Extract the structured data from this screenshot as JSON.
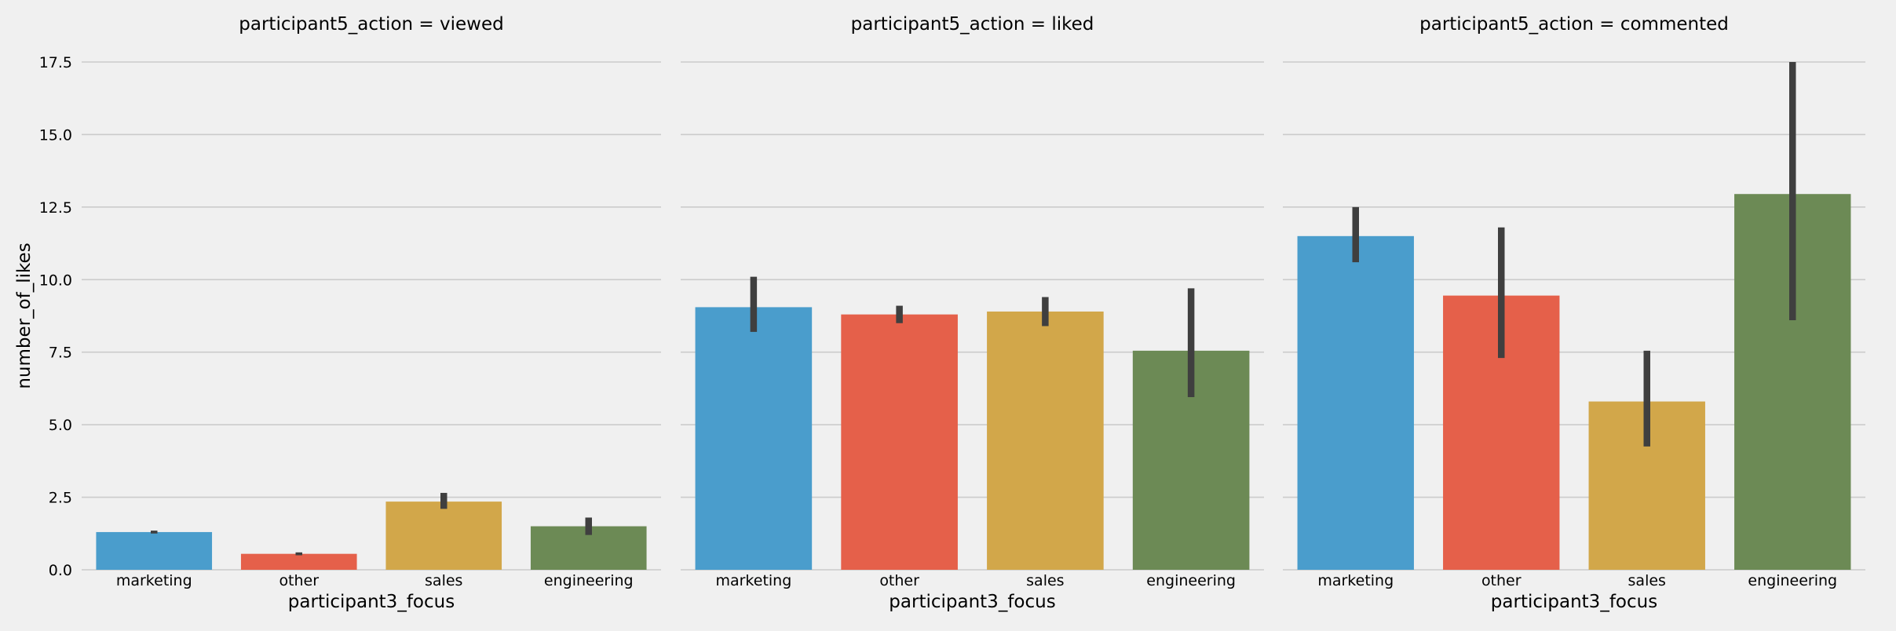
{
  "chart_data": {
    "type": "bar",
    "layout": "facet-grid-1x3",
    "shared_y_axis": true,
    "ylabel": "number_of_likes",
    "xlabel": "participant3_focus",
    "ylim": [
      0,
      17.5
    ],
    "yticks": [
      0.0,
      2.5,
      5.0,
      7.5,
      10.0,
      12.5,
      15.0,
      17.5
    ],
    "ytick_labels": [
      "0.0",
      "2.5",
      "5.0",
      "7.5",
      "10.0",
      "12.5",
      "15.0",
      "17.5"
    ],
    "grid": "horizontal",
    "background_color": "#f0f0f0",
    "grid_color": "#cbcbcb",
    "errorbar_color": "#3f3f3f",
    "categories": [
      "marketing",
      "other",
      "sales",
      "engineering"
    ],
    "colors": [
      "#4a9dcc",
      "#e5604a",
      "#d2a74a",
      "#6c8a55"
    ],
    "facets": [
      {
        "title": "participant5_action = viewed",
        "values": [
          1.3,
          0.55,
          2.35,
          1.5
        ],
        "ci": [
          [
            1.25,
            1.35
          ],
          [
            0.5,
            0.6
          ],
          [
            2.1,
            2.65
          ],
          [
            1.2,
            1.8
          ]
        ]
      },
      {
        "title": "participant5_action = liked",
        "values": [
          9.05,
          8.8,
          8.9,
          7.55
        ],
        "ci": [
          [
            8.2,
            10.1
          ],
          [
            8.5,
            9.1
          ],
          [
            8.4,
            9.4
          ],
          [
            5.95,
            9.7
          ]
        ]
      },
      {
        "title": "participant5_action = commented",
        "values": [
          11.5,
          9.45,
          5.8,
          12.95
        ],
        "ci": [
          [
            10.6,
            12.5
          ],
          [
            7.3,
            11.8
          ],
          [
            4.25,
            7.55
          ],
          [
            8.6,
            17.5
          ]
        ]
      }
    ]
  }
}
